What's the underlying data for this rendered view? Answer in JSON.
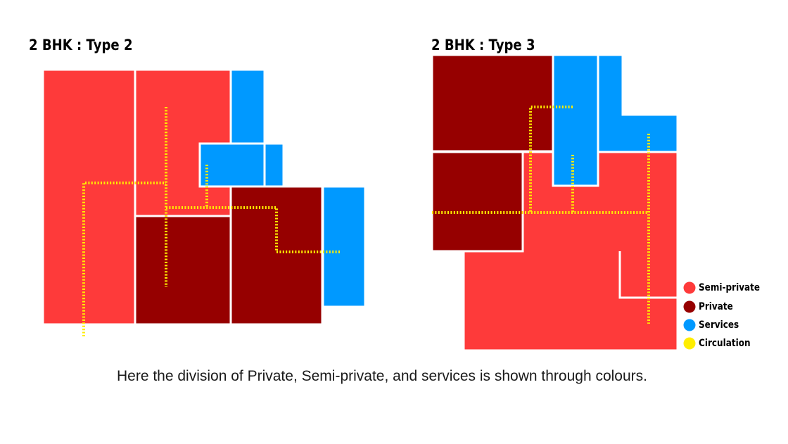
{
  "diagram": {
    "plan_1": {
      "title": "2 BHK : Type 2"
    },
    "plan_2": {
      "title": "2 BHK : Type 3"
    },
    "legend": [
      {
        "label": "Semi-private",
        "color": "#fe3a3a"
      },
      {
        "label": "Private",
        "color": "#960000"
      },
      {
        "label": "Services",
        "color": "#0099ff"
      },
      {
        "label": "Circulation",
        "color": "#ffee00"
      }
    ],
    "caption": "Here the division of Private, Semi-private, and services is shown through colours."
  }
}
